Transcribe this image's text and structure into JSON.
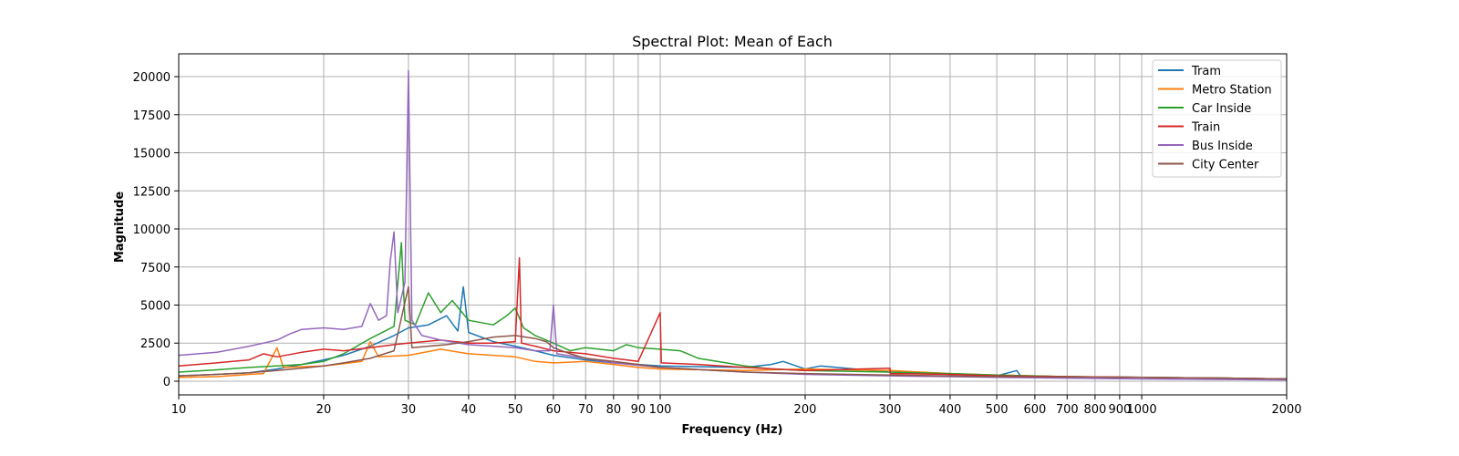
{
  "chart_data": {
    "type": "line",
    "title": "Spectral Plot: Mean of Each",
    "xlabel": "Frequency (Hz)",
    "ylabel": "Magnitude",
    "xscale": "log",
    "xlim": [
      10,
      2000
    ],
    "ylim": [
      -900,
      21500
    ],
    "x_ticks": [
      10,
      20,
      30,
      40,
      50,
      60,
      70,
      80,
      90,
      100,
      200,
      300,
      400,
      500,
      600,
      700,
      800,
      900,
      1000,
      2000
    ],
    "y_ticks": [
      0,
      2500,
      5000,
      7500,
      10000,
      12500,
      15000,
      17500,
      20000
    ],
    "grid": true,
    "legend_position": "top-right",
    "series": [
      {
        "name": "Tram",
        "color": "#1f77b4",
        "points": [
          [
            10,
            350
          ],
          [
            12,
            450
          ],
          [
            14,
            550
          ],
          [
            16,
            800
          ],
          [
            18,
            1100
          ],
          [
            20,
            1400
          ],
          [
            22,
            1700
          ],
          [
            25,
            2300
          ],
          [
            28,
            3000
          ],
          [
            30,
            3500
          ],
          [
            33,
            3700
          ],
          [
            36,
            4300
          ],
          [
            38,
            3300
          ],
          [
            39,
            6200
          ],
          [
            40,
            3200
          ],
          [
            45,
            2600
          ],
          [
            50,
            2300
          ],
          [
            55,
            2000
          ],
          [
            60,
            1700
          ],
          [
            70,
            1400
          ],
          [
            80,
            1200
          ],
          [
            90,
            1100
          ],
          [
            100,
            1000
          ],
          [
            150,
            900
          ],
          [
            170,
            1100
          ],
          [
            180,
            1300
          ],
          [
            200,
            800
          ],
          [
            215,
            1000
          ],
          [
            300,
            600
          ],
          [
            400,
            450
          ],
          [
            500,
            350
          ],
          [
            550,
            700
          ],
          [
            560,
            350
          ],
          [
            700,
            300
          ],
          [
            1000,
            250
          ],
          [
            1500,
            200
          ],
          [
            2000,
            150
          ]
        ]
      },
      {
        "name": "Metro Station",
        "color": "#ff7f0e",
        "points": [
          [
            10,
            250
          ],
          [
            12,
            300
          ],
          [
            14,
            450
          ],
          [
            15,
            500
          ],
          [
            16,
            2200
          ],
          [
            16.5,
            900
          ],
          [
            20,
            1000
          ],
          [
            24,
            1300
          ],
          [
            25,
            2600
          ],
          [
            26,
            1600
          ],
          [
            30,
            1700
          ],
          [
            35,
            2100
          ],
          [
            40,
            1800
          ],
          [
            45,
            1700
          ],
          [
            50,
            1600
          ],
          [
            55,
            1300
          ],
          [
            60,
            1200
          ],
          [
            70,
            1300
          ],
          [
            80,
            1100
          ],
          [
            90,
            900
          ],
          [
            100,
            800
          ],
          [
            150,
            700
          ],
          [
            200,
            800
          ],
          [
            300,
            700
          ],
          [
            400,
            500
          ],
          [
            500,
            400
          ],
          [
            700,
            300
          ],
          [
            1000,
            250
          ],
          [
            1500,
            200
          ],
          [
            2000,
            150
          ]
        ]
      },
      {
        "name": "Car Inside",
        "color": "#2ca02c",
        "points": [
          [
            10,
            600
          ],
          [
            12,
            750
          ],
          [
            14,
            900
          ],
          [
            16,
            1000
          ],
          [
            18,
            1100
          ],
          [
            20,
            1300
          ],
          [
            22,
            1800
          ],
          [
            25,
            2800
          ],
          [
            28,
            3600
          ],
          [
            29,
            9100
          ],
          [
            29.5,
            4000
          ],
          [
            31,
            3700
          ],
          [
            33,
            5800
          ],
          [
            35,
            4500
          ],
          [
            37,
            5300
          ],
          [
            40,
            4000
          ],
          [
            45,
            3700
          ],
          [
            48,
            4300
          ],
          [
            50,
            4800
          ],
          [
            52,
            3500
          ],
          [
            55,
            3000
          ],
          [
            60,
            2500
          ],
          [
            65,
            2000
          ],
          [
            70,
            2200
          ],
          [
            80,
            2000
          ],
          [
            85,
            2400
          ],
          [
            90,
            2200
          ],
          [
            100,
            2100
          ],
          [
            110,
            2000
          ],
          [
            120,
            1500
          ],
          [
            150,
            1000
          ],
          [
            170,
            800
          ],
          [
            200,
            700
          ],
          [
            300,
            600
          ],
          [
            400,
            500
          ],
          [
            500,
            400
          ],
          [
            700,
            300
          ],
          [
            1000,
            250
          ],
          [
            1500,
            200
          ],
          [
            2000,
            150
          ]
        ]
      },
      {
        "name": "Train",
        "color": "#d62728",
        "points": [
          [
            10,
            1000
          ],
          [
            12,
            1200
          ],
          [
            14,
            1400
          ],
          [
            15,
            1800
          ],
          [
            16,
            1600
          ],
          [
            18,
            1900
          ],
          [
            20,
            2100
          ],
          [
            22,
            2000
          ],
          [
            25,
            2200
          ],
          [
            28,
            2400
          ],
          [
            30,
            2500
          ],
          [
            35,
            2700
          ],
          [
            40,
            2500
          ],
          [
            45,
            2500
          ],
          [
            50,
            2600
          ],
          [
            51,
            8100
          ],
          [
            51.5,
            2500
          ],
          [
            55,
            2300
          ],
          [
            60,
            2000
          ],
          [
            70,
            1800
          ],
          [
            80,
            1500
          ],
          [
            90,
            1300
          ],
          [
            100,
            4500
          ],
          [
            100.5,
            1200
          ],
          [
            120,
            1100
          ],
          [
            150,
            900
          ],
          [
            200,
            700
          ],
          [
            300,
            850
          ],
          [
            300.5,
            500
          ],
          [
            400,
            450
          ],
          [
            500,
            350
          ],
          [
            700,
            300
          ],
          [
            1000,
            250
          ],
          [
            1500,
            200
          ],
          [
            2000,
            150
          ]
        ]
      },
      {
        "name": "Bus Inside",
        "color": "#9467bd",
        "points": [
          [
            10,
            1700
          ],
          [
            11,
            1800
          ],
          [
            12,
            1900
          ],
          [
            13,
            2100
          ],
          [
            14,
            2300
          ],
          [
            15,
            2500
          ],
          [
            16,
            2700
          ],
          [
            17,
            3100
          ],
          [
            18,
            3400
          ],
          [
            20,
            3500
          ],
          [
            22,
            3400
          ],
          [
            24,
            3600
          ],
          [
            25,
            5100
          ],
          [
            26,
            4000
          ],
          [
            27,
            4300
          ],
          [
            27.5,
            7900
          ],
          [
            28,
            9800
          ],
          [
            28.5,
            4500
          ],
          [
            29,
            5500
          ],
          [
            29.5,
            6500
          ],
          [
            30,
            20400
          ],
          [
            30.5,
            4000
          ],
          [
            32,
            3000
          ],
          [
            35,
            2700
          ],
          [
            40,
            2400
          ],
          [
            45,
            2300
          ],
          [
            50,
            2200
          ],
          [
            55,
            2000
          ],
          [
            59,
            2000
          ],
          [
            60,
            5000
          ],
          [
            61,
            1800
          ],
          [
            70,
            1500
          ],
          [
            80,
            1200
          ],
          [
            100,
            900
          ],
          [
            150,
            600
          ],
          [
            200,
            450
          ],
          [
            300,
            350
          ],
          [
            500,
            250
          ],
          [
            1000,
            150
          ],
          [
            2000,
            80
          ]
        ]
      },
      {
        "name": "City Center",
        "color": "#8c564b",
        "points": [
          [
            10,
            350
          ],
          [
            12,
            450
          ],
          [
            14,
            550
          ],
          [
            16,
            700
          ],
          [
            18,
            850
          ],
          [
            20,
            1000
          ],
          [
            22,
            1200
          ],
          [
            25,
            1500
          ],
          [
            28,
            2000
          ],
          [
            30,
            6200
          ],
          [
            30.5,
            2200
          ],
          [
            33,
            2300
          ],
          [
            36,
            2400
          ],
          [
            40,
            2600
          ],
          [
            45,
            2900
          ],
          [
            50,
            3000
          ],
          [
            55,
            2800
          ],
          [
            58,
            2600
          ],
          [
            60,
            2200
          ],
          [
            65,
            1800
          ],
          [
            70,
            1500
          ],
          [
            80,
            1300
          ],
          [
            90,
            1100
          ],
          [
            100,
            900
          ],
          [
            150,
            600
          ],
          [
            200,
            500
          ],
          [
            300,
            400
          ],
          [
            500,
            300
          ],
          [
            1000,
            250
          ],
          [
            1500,
            200
          ],
          [
            2000,
            150
          ]
        ]
      }
    ]
  }
}
